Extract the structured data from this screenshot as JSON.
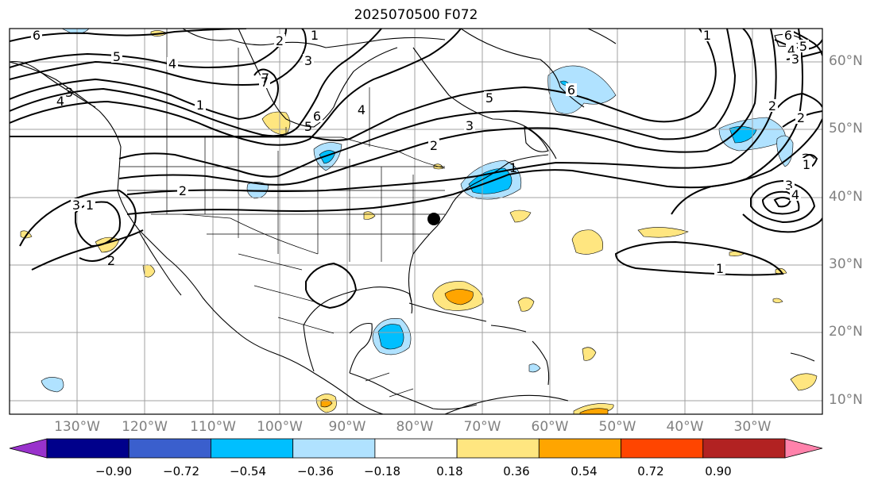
{
  "title": "2025070500 F072",
  "lat_labels": [
    "60°N",
    "50°N",
    "40°N",
    "30°N",
    "20°N",
    "10°N"
  ],
  "lon_labels": [
    "130°W",
    "120°W",
    "110°W",
    "100°W",
    "90°W",
    "80°W",
    "70°W",
    "60°W",
    "50°W",
    "40°W",
    "30°W"
  ],
  "colorbar": {
    "colors": [
      "#9932cc",
      "#00008b",
      "#3a5fcd",
      "#00bfff",
      "#b0e2ff",
      "#ffffff",
      "#ffe680",
      "#ffa500",
      "#ff4500",
      "#b22222",
      "#ff82ab"
    ],
    "tick_labels": [
      "−0.90",
      "−0.72",
      "−0.54",
      "−0.36",
      "−0.18",
      "0.18",
      "0.36",
      "0.54",
      "0.72",
      "0.90"
    ]
  },
  "contour_labels": [
    "6",
    "5",
    "4",
    "1",
    "2",
    "1",
    "3",
    "4",
    "5",
    "6",
    "7",
    "3",
    "2",
    "1",
    "2",
    "6",
    "5",
    "4",
    "3",
    "7",
    "6",
    "5",
    "4",
    "3",
    "2",
    "2",
    "1",
    "3",
    "4",
    "1",
    "3",
    "1",
    "2",
    "1"
  ],
  "colors": {
    "coast": "#000000",
    "grid": "#a0a0a0",
    "contour": "#000000"
  }
}
